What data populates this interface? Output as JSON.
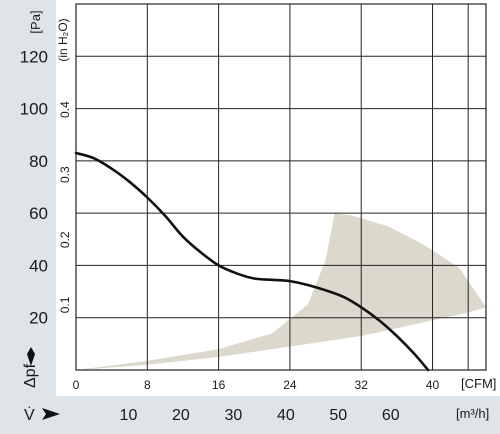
{
  "chart_data": {
    "type": "line",
    "y_left": {
      "unit_label": "[Pa]",
      "axis_symbol": "Δpf",
      "range": [
        0,
        140
      ],
      "ticks": [
        20,
        40,
        60,
        80,
        100,
        120
      ],
      "tick_labels": [
        "20",
        "40",
        "60",
        "80",
        "100",
        "120"
      ]
    },
    "y_inner": {
      "unit_label": "(in H₂O)",
      "range_in_pa": [
        0,
        140
      ],
      "ticks_pa": [
        24.9,
        49.8,
        74.7,
        99.6
      ],
      "tick_labels": [
        "0.1",
        "0.2",
        "0.3",
        "0.4"
      ]
    },
    "x_cfm": {
      "unit_label": "[CFM]",
      "range": [
        0,
        46
      ],
      "ticks": [
        0,
        8,
        16,
        24,
        32,
        40
      ],
      "tick_labels": [
        "0",
        "8",
        "16",
        "24",
        "32",
        "40"
      ]
    },
    "x_m3h": {
      "unit_label": "[m³/h]",
      "axis_symbol": "V̇",
      "ticks": [
        10,
        20,
        30,
        40,
        50,
        60
      ],
      "tick_labels": [
        "10",
        "20",
        "30",
        "40",
        "50",
        "60"
      ]
    },
    "grid": true,
    "series": [
      {
        "x": [
          0,
          2,
          4,
          6,
          8,
          10,
          12,
          14,
          16,
          18,
          20,
          22,
          24,
          26,
          28,
          30,
          32,
          34,
          36,
          38,
          39.5
        ],
        "y": [
          83,
          81,
          77,
          72,
          66,
          59,
          51,
          45,
          40,
          37,
          35,
          34.5,
          34,
          32.5,
          30.5,
          28,
          24,
          19,
          13,
          6,
          0
        ],
        "color": "#111111"
      }
    ],
    "operating_region": {
      "x": [
        0,
        8,
        16,
        22,
        26,
        28,
        29,
        31,
        35,
        39,
        43,
        46,
        44,
        40,
        36,
        32,
        24,
        16,
        8,
        0
      ],
      "y": [
        0,
        3.5,
        8,
        14,
        25,
        42,
        60,
        59,
        55,
        48,
        39,
        24,
        22,
        19,
        16,
        13,
        9,
        5,
        2,
        0
      ],
      "color": "#dcd8cc"
    }
  }
}
